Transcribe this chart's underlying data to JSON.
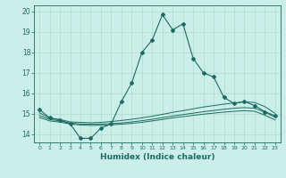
{
  "xlabel": "Humidex (Indice chaleur)",
  "background_color": "#cceee8",
  "line_color": "#1a6b62",
  "grid_color": "#aaddcc",
  "xlim": [
    -0.5,
    23.5
  ],
  "ylim": [
    13.6,
    20.3
  ],
  "yticks": [
    14,
    15,
    16,
    17,
    18,
    19,
    20
  ],
  "xticks": [
    0,
    1,
    2,
    3,
    4,
    5,
    6,
    7,
    8,
    9,
    10,
    11,
    12,
    13,
    14,
    15,
    16,
    17,
    18,
    19,
    20,
    21,
    22,
    23
  ],
  "lines": [
    {
      "x": [
        0,
        1,
        2,
        3,
        4,
        5,
        6,
        7,
        8,
        9,
        10,
        11,
        12,
        13,
        14,
        15,
        16,
        17,
        18,
        19,
        20,
        21,
        22,
        23
      ],
      "y": [
        15.2,
        14.8,
        14.7,
        14.5,
        13.8,
        13.8,
        14.3,
        14.5,
        15.6,
        16.5,
        18.0,
        18.6,
        19.85,
        19.1,
        19.4,
        17.7,
        17.0,
        16.8,
        15.8,
        15.5,
        15.6,
        15.4,
        15.1,
        14.9
      ],
      "marker": true
    },
    {
      "x": [
        0,
        1,
        2,
        3,
        4,
        5,
        6,
        7,
        8,
        9,
        10,
        11,
        12,
        13,
        14,
        15,
        16,
        17,
        18,
        19,
        20,
        21,
        22,
        23
      ],
      "y": [
        15.05,
        14.78,
        14.72,
        14.6,
        14.58,
        14.56,
        14.58,
        14.62,
        14.67,
        14.73,
        14.8,
        14.88,
        14.97,
        15.07,
        15.15,
        15.24,
        15.33,
        15.4,
        15.47,
        15.53,
        15.58,
        15.55,
        15.35,
        15.02
      ],
      "marker": false
    },
    {
      "x": [
        0,
        1,
        2,
        3,
        4,
        5,
        6,
        7,
        8,
        9,
        10,
        11,
        12,
        13,
        14,
        15,
        16,
        17,
        18,
        19,
        20,
        21,
        22,
        23
      ],
      "y": [
        14.92,
        14.72,
        14.65,
        14.55,
        14.5,
        14.49,
        14.5,
        14.52,
        14.55,
        14.6,
        14.66,
        14.73,
        14.81,
        14.89,
        14.96,
        15.03,
        15.1,
        15.16,
        15.22,
        15.27,
        15.3,
        15.27,
        15.08,
        14.83
      ],
      "marker": false
    },
    {
      "x": [
        0,
        1,
        2,
        3,
        4,
        5,
        6,
        7,
        8,
        9,
        10,
        11,
        12,
        13,
        14,
        15,
        16,
        17,
        18,
        19,
        20,
        21,
        22,
        23
      ],
      "y": [
        14.82,
        14.65,
        14.59,
        14.5,
        14.45,
        14.43,
        14.44,
        14.46,
        14.49,
        14.53,
        14.58,
        14.65,
        14.72,
        14.8,
        14.86,
        14.92,
        14.98,
        15.03,
        15.08,
        15.12,
        15.15,
        15.12,
        14.93,
        14.7
      ],
      "marker": false
    }
  ]
}
